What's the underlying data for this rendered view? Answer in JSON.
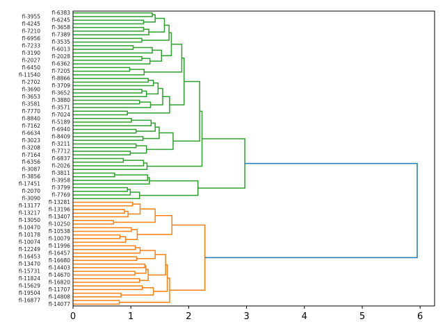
{
  "chart_data": {
    "type": "dendrogram",
    "orientation": "left",
    "title": "",
    "xlabel": "",
    "ylabel": "",
    "xlim": [
      0,
      6.25
    ],
    "xticks": [
      0,
      1,
      2,
      3,
      4,
      5,
      6
    ],
    "grid": false,
    "colors": {
      "cluster_1": "#2ca02c",
      "cluster_2": "#ff7f0e",
      "above_threshold": "#1f77b4"
    },
    "leaves": [
      "fl-6383",
      "fl-3955",
      "fl-6245",
      "fl-4245",
      "fl-3658",
      "fl-7210",
      "fl-7389",
      "fl-6956",
      "fl-3535",
      "fl-7233",
      "fl-6013",
      "fl-3190",
      "fl-2028",
      "fl-2027",
      "fl-6362",
      "fl-6450",
      "fl-7205",
      "fl-11540",
      "fl-8866",
      "fl-2702",
      "fl-3709",
      "fl-3690",
      "fl-3652",
      "fl-3653",
      "fl-3880",
      "fl-3581",
      "fl-3571",
      "fl-7770",
      "fl-7024",
      "fl-8840",
      "fl-5189",
      "fl-7162",
      "fl-6940",
      "fl-6634",
      "fl-8409",
      "fl-3023",
      "fl-3211",
      "fl-3208",
      "fl-7712",
      "fl-7164",
      "fl-6837",
      "fl-6356",
      "fl-2026",
      "fl-3087",
      "fl-3811",
      "fl-3856",
      "fl-3958",
      "fl-17451",
      "fl-3799",
      "fl-2070",
      "fl-7769",
      "fl-3090",
      "fl-13281",
      "fl-13177",
      "fl-13196",
      "fl-13217",
      "fl-13407",
      "fl-13050",
      "fl-10250",
      "fl-10470",
      "fl-10538",
      "fl-10178",
      "fl-10079",
      "fl-10074",
      "fl-11996",
      "fl-12249",
      "fl-16457",
      "fl-16453",
      "fl-16680",
      "fl-13470",
      "fl-14403",
      "fl-15731",
      "fl-14670",
      "fl-11824",
      "fl-16820",
      "fl-15629",
      "fl-11707",
      "fl-19504",
      "fl-14808",
      "fl-16877",
      "fl-14077"
    ],
    "tree": [
      5.95,
      {
        "cluster": "cluster_1",
        "node": [
          2.97,
          [
            2.23,
            [
              2.19,
              [
                1.92,
                [
                  1.88,
                  [
                    1.7,
                    [
                      1.66,
                      [
                        1.58,
                        [
                          1.42,
                          [
                            1.37,
                            0,
                            1
                          ],
                          [
                            1.22,
                            2,
                            3
                          ]
                        ],
                        [
                          1.31,
                          [
                            1.22,
                            4,
                            5
                          ],
                          6
                        ]
                      ],
                      [
                        1.19,
                        7,
                        8
                      ]
                    ],
                    [
                      1.53,
                      [
                        1.37,
                        [
                          1.04,
                          9,
                          10
                        ],
                        11
                      ],
                      [
                        1.33,
                        [
                          1.19,
                          12,
                          13
                        ],
                        14
                      ]
                    ]
                  ],
                  [
                    1.23,
                    [
                      0.98,
                      15,
                      16
                    ],
                    17
                  ]
                ],
                [
                  1.67,
                  [
                    1.55,
                    [
                      1.47,
                      [
                        1.39,
                        [
                          1.3,
                          18,
                          19
                        ],
                        20
                      ],
                      [
                        1.27,
                        [
                          1.19,
                          21,
                          22
                        ],
                        23
                      ]
                    ],
                    [
                      1.34,
                      [
                        1.15,
                        24,
                        25
                      ],
                      26
                    ]
                  ],
                  [
                    0.94,
                    27,
                    28
                  ]
                ]
              ],
              [
                1.73,
                [
                  1.49,
                  [
                    1.42,
                    [
                      1.35,
                      [
                        1.01,
                        29,
                        30
                      ],
                      31
                    ],
                    [
                      1.09,
                      32,
                      33
                    ]
                  ],
                  [
                    1.21,
                    34,
                    35
                  ]
                ],
                [
                  1.27,
                  [
                    1.09,
                    36,
                    37
                  ],
                  [
                    0.99,
                    38,
                    39
                  ]
                ]
              ]
            ],
            [
              1.28,
              [
                1.22,
                [
                  0.87,
                  40,
                  41
                ],
                42
              ],
              43
            ]
          ],
          [
            2.16,
            [
              1.32,
              [
                1.29,
                [
                  0.72,
                  44,
                  45
                ],
                46
              ],
              47
            ],
            [
              1.15,
              [
                0.99,
                [
                  0.94,
                  48,
                  49
                ],
                50
              ],
              51
            ]
          ]
        ]
      },
      {
        "cluster": "cluster_2",
        "node": [
          2.28,
          [
            1.71,
            [
              1.42,
              [
                1.16,
                [
                  1.03,
                  52,
                  53
                ],
                [
                  0.95,
                  [
                    0.89,
                    54,
                    55
                  ],
                  56
                ]
              ],
              [
                0.7,
                57,
                58
              ]
            ],
            [
              1.11,
              [
                1.01,
                59,
                60
              ],
              [
                0.91,
                [
                  0.81,
                  61,
                  62
                ],
                63
              ]
            ]
          ],
          [
            1.67,
            [
              1.63,
              [
                1.6,
                [
                  1.42,
                  [
                    1.16,
                    [
                      1.08,
                      64,
                      65
                    ],
                    66
                  ],
                  [
                    1.1,
                    67,
                    68
                  ]
                ],
                [
                  1.3,
                  [
                    1.26,
                    [
                      1.24,
                      69,
                      70
                    ],
                    [
                      1.07,
                      71,
                      72
                    ]
                  ],
                  [
                    1.15,
                    73,
                    74
                  ]
                ]
              ],
              [
                1.39,
                [
                  1.2,
                  75,
                  76
                ],
                [
                  0.83,
                  77,
                  78
                ]
              ]
            ],
            [
              0.8,
              79,
              80
            ]
          ]
        ]
      }
    ]
  }
}
